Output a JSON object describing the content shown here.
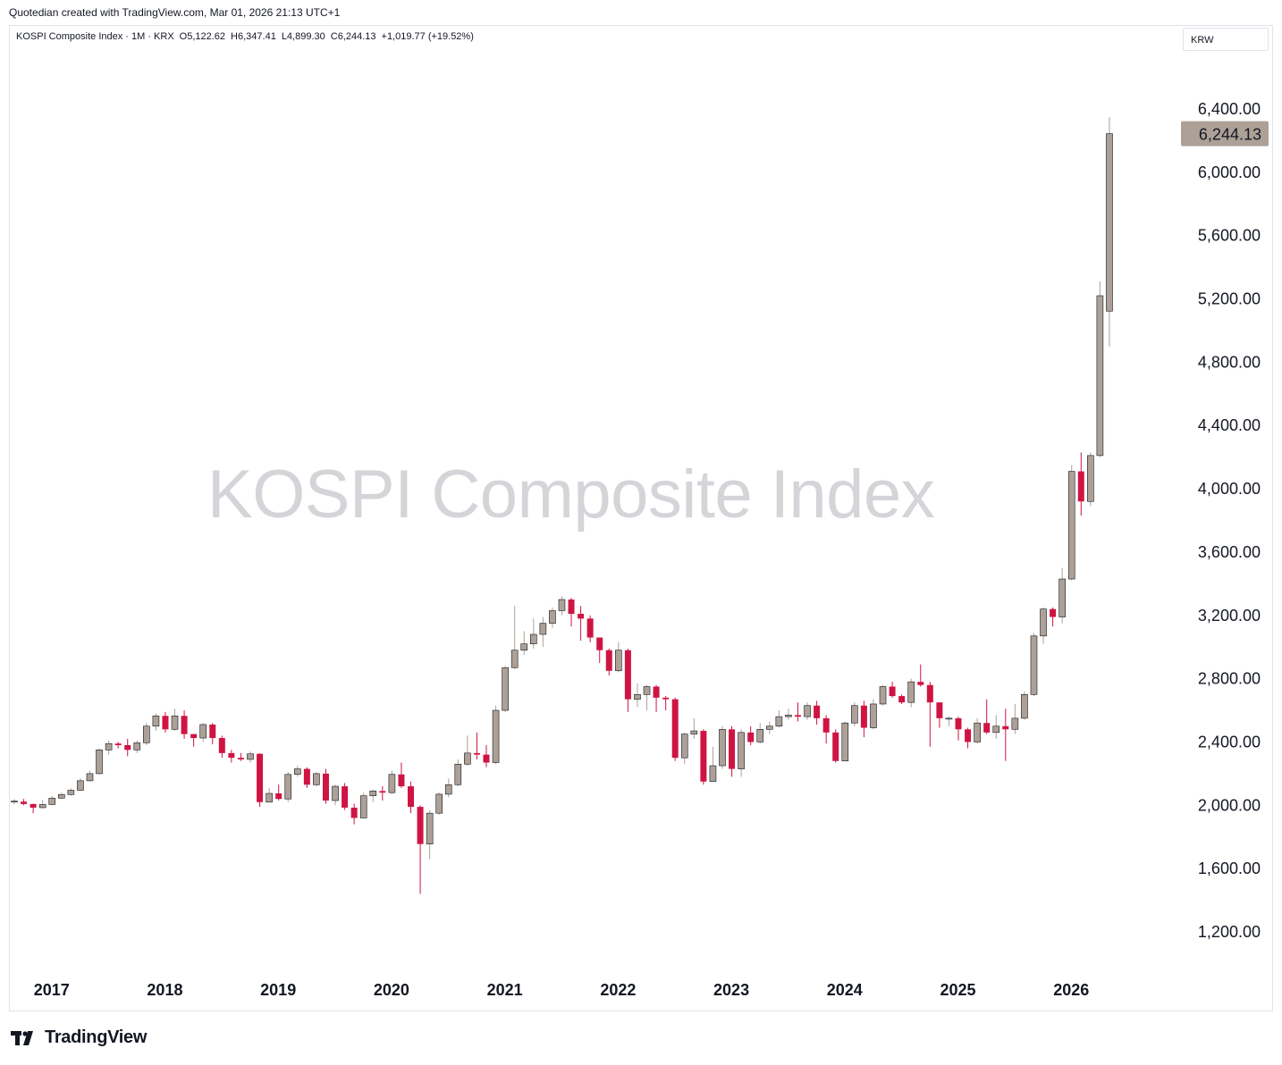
{
  "header": {
    "text": "Quotedian created with TradingView.com, Mar 01, 2026 21:13 UTC+1"
  },
  "legend": {
    "symbol": "KOSPI Composite Index · 1M · KRX",
    "open": "O5,122.62",
    "high": "H6,347.41",
    "low": "L4,899.30",
    "close": "C6,244.13",
    "change": "+1,019.77 (+19.52%)"
  },
  "currency": "KRW",
  "watermark": "KOSPI Composite Index",
  "brand": "TradingView",
  "last_price_label": "6,244.13",
  "colors": {
    "up": "#ada197",
    "down": "#cf1443",
    "last_price_bg": "#ada197"
  },
  "chart_data": {
    "type": "candlestick",
    "interval": "1M",
    "yaxis": {
      "ticks": [
        "6,400.00",
        "6,000.00",
        "5,600.00",
        "5,200.00",
        "4,800.00",
        "4,400.00",
        "4,000.00",
        "3,600.00",
        "3,200.00",
        "2,800.00",
        "2,400.00",
        "2,000.00",
        "1,600.00",
        "1,200.00"
      ],
      "tick_values": [
        6400,
        6000,
        5600,
        5200,
        4800,
        4400,
        4000,
        3600,
        3200,
        2800,
        2400,
        2000,
        1600,
        1200
      ],
      "range": [
        1000,
        6900
      ]
    },
    "xaxis": {
      "ticks": [
        "2017",
        "2018",
        "2019",
        "2020",
        "2021",
        "2022",
        "2023",
        "2024",
        "2025",
        "2026"
      ]
    },
    "ohlc": [
      [
        2026,
        2026,
        2040,
        2005
      ],
      [
        2023,
        2008,
        2040,
        2000
      ],
      [
        2008,
        1985,
        2010,
        1950
      ],
      [
        1985,
        2005,
        2035,
        1980
      ],
      [
        2005,
        2045,
        2060,
        2000
      ],
      [
        2045,
        2068,
        2080,
        2040
      ],
      [
        2068,
        2095,
        2108,
        2060
      ],
      [
        2095,
        2155,
        2170,
        2090
      ],
      [
        2155,
        2200,
        2220,
        2150
      ],
      [
        2200,
        2350,
        2360,
        2195
      ],
      [
        2350,
        2390,
        2410,
        2320
      ],
      [
        2390,
        2380,
        2400,
        2360
      ],
      [
        2380,
        2350,
        2420,
        2310
      ],
      [
        2350,
        2395,
        2410,
        2330
      ],
      [
        2395,
        2500,
        2520,
        2380
      ],
      [
        2500,
        2565,
        2580,
        2470
      ],
      [
        2565,
        2480,
        2590,
        2460
      ],
      [
        2480,
        2565,
        2610,
        2470
      ],
      [
        2565,
        2450,
        2600,
        2420
      ],
      [
        2450,
        2425,
        2450,
        2370
      ],
      [
        2425,
        2510,
        2520,
        2400
      ],
      [
        2510,
        2425,
        2520,
        2385
      ],
      [
        2425,
        2330,
        2440,
        2300
      ],
      [
        2330,
        2300,
        2350,
        2270
      ],
      [
        2300,
        2290,
        2330,
        2280
      ],
      [
        2290,
        2325,
        2340,
        2270
      ],
      [
        2325,
        2020,
        2330,
        1990
      ],
      [
        2020,
        2075,
        2110,
        2030
      ],
      [
        2075,
        2040,
        2130,
        2030
      ],
      [
        2040,
        2195,
        2210,
        2020
      ],
      [
        2195,
        2230,
        2250,
        2180
      ],
      [
        2230,
        2130,
        2240,
        2110
      ],
      [
        2130,
        2200,
        2210,
        2120
      ],
      [
        2200,
        2030,
        2230,
        2010
      ],
      [
        2030,
        2120,
        2130,
        2000
      ],
      [
        2120,
        1985,
        2140,
        1970
      ],
      [
        1985,
        1920,
        2010,
        1880
      ],
      [
        1920,
        2060,
        2080,
        1930
      ],
      [
        2060,
        2090,
        2100,
        2020
      ],
      [
        2090,
        2080,
        2120,
        2030
      ],
      [
        2080,
        2195,
        2220,
        2070
      ],
      [
        2195,
        2120,
        2270,
        2110
      ],
      [
        2120,
        1990,
        2150,
        1950
      ],
      [
        1990,
        1755,
        2000,
        1440
      ],
      [
        1755,
        1950,
        1970,
        1660
      ],
      [
        1950,
        2070,
        2080,
        1940
      ],
      [
        2070,
        2130,
        2170,
        2050
      ],
      [
        2130,
        2260,
        2290,
        2120
      ],
      [
        2260,
        2330,
        2440,
        2250
      ],
      [
        2330,
        2320,
        2460,
        2290
      ],
      [
        2320,
        2270,
        2380,
        2240
      ],
      [
        2270,
        2600,
        2630,
        2260
      ],
      [
        2600,
        2870,
        2880,
        2590
      ],
      [
        2870,
        2980,
        3260,
        2860
      ],
      [
        2980,
        3020,
        3100,
        2950
      ],
      [
        3020,
        3080,
        3180,
        2990
      ],
      [
        3080,
        3150,
        3190,
        3000
      ],
      [
        3150,
        3230,
        3250,
        3120
      ],
      [
        3230,
        3300,
        3320,
        3200
      ],
      [
        3300,
        3210,
        3310,
        3130
      ],
      [
        3210,
        3180,
        3260,
        3040
      ],
      [
        3180,
        3060,
        3200,
        3030
      ],
      [
        3060,
        2980,
        3060,
        2900
      ],
      [
        2980,
        2850,
        2990,
        2820
      ],
      [
        2850,
        2980,
        3030,
        2840
      ],
      [
        2980,
        2670,
        2990,
        2590
      ],
      [
        2670,
        2700,
        2770,
        2620
      ],
      [
        2700,
        2750,
        2760,
        2600
      ],
      [
        2750,
        2680,
        2760,
        2590
      ],
      [
        2680,
        2670,
        2690,
        2600
      ],
      [
        2670,
        2300,
        2680,
        2280
      ],
      [
        2300,
        2450,
        2460,
        2260
      ],
      [
        2450,
        2470,
        2550,
        2420
      ],
      [
        2470,
        2150,
        2480,
        2130
      ],
      [
        2150,
        2250,
        2370,
        2150
      ],
      [
        2250,
        2480,
        2500,
        2230
      ],
      [
        2480,
        2230,
        2500,
        2180
      ],
      [
        2230,
        2460,
        2480,
        2180
      ],
      [
        2460,
        2400,
        2500,
        2380
      ],
      [
        2400,
        2480,
        2520,
        2390
      ],
      [
        2480,
        2500,
        2530,
        2450
      ],
      [
        2500,
        2560,
        2600,
        2490
      ],
      [
        2560,
        2570,
        2610,
        2540
      ],
      [
        2570,
        2560,
        2650,
        2530
      ],
      [
        2560,
        2630,
        2650,
        2540
      ],
      [
        2630,
        2550,
        2660,
        2510
      ],
      [
        2550,
        2460,
        2570,
        2390
      ],
      [
        2460,
        2280,
        2480,
        2270
      ],
      [
        2280,
        2520,
        2530,
        2280
      ],
      [
        2520,
        2630,
        2650,
        2500
      ],
      [
        2630,
        2490,
        2660,
        2430
      ],
      [
        2490,
        2640,
        2670,
        2480
      ],
      [
        2640,
        2750,
        2760,
        2630
      ],
      [
        2750,
        2690,
        2780,
        2680
      ],
      [
        2690,
        2650,
        2700,
        2640
      ],
      [
        2650,
        2780,
        2800,
        2620
      ],
      [
        2780,
        2760,
        2890,
        2750
      ],
      [
        2760,
        2650,
        2780,
        2370
      ],
      [
        2650,
        2550,
        2650,
        2490
      ],
      [
        2550,
        2550,
        2560,
        2500
      ],
      [
        2550,
        2480,
        2560,
        2410
      ],
      [
        2480,
        2400,
        2490,
        2360
      ],
      [
        2400,
        2520,
        2550,
        2390
      ],
      [
        2520,
        2460,
        2670,
        2450
      ],
      [
        2460,
        2500,
        2570,
        2420
      ],
      [
        2500,
        2480,
        2610,
        2280
      ],
      [
        2480,
        2550,
        2640,
        2450
      ],
      [
        2550,
        2700,
        2720,
        2540
      ],
      [
        2700,
        3070,
        3090,
        2690
      ],
      [
        3070,
        3240,
        3250,
        3020
      ],
      [
        3240,
        3190,
        3250,
        3130
      ],
      [
        3190,
        3430,
        3500,
        3150
      ],
      [
        3430,
        4110,
        4150,
        3420
      ],
      [
        4110,
        3920,
        4230,
        3830
      ],
      [
        3920,
        4210,
        4230,
        3890
      ],
      [
        4210,
        5220,
        5310,
        4200
      ],
      [
        5122.62,
        6244.13,
        6347.41,
        4899.3
      ]
    ]
  }
}
